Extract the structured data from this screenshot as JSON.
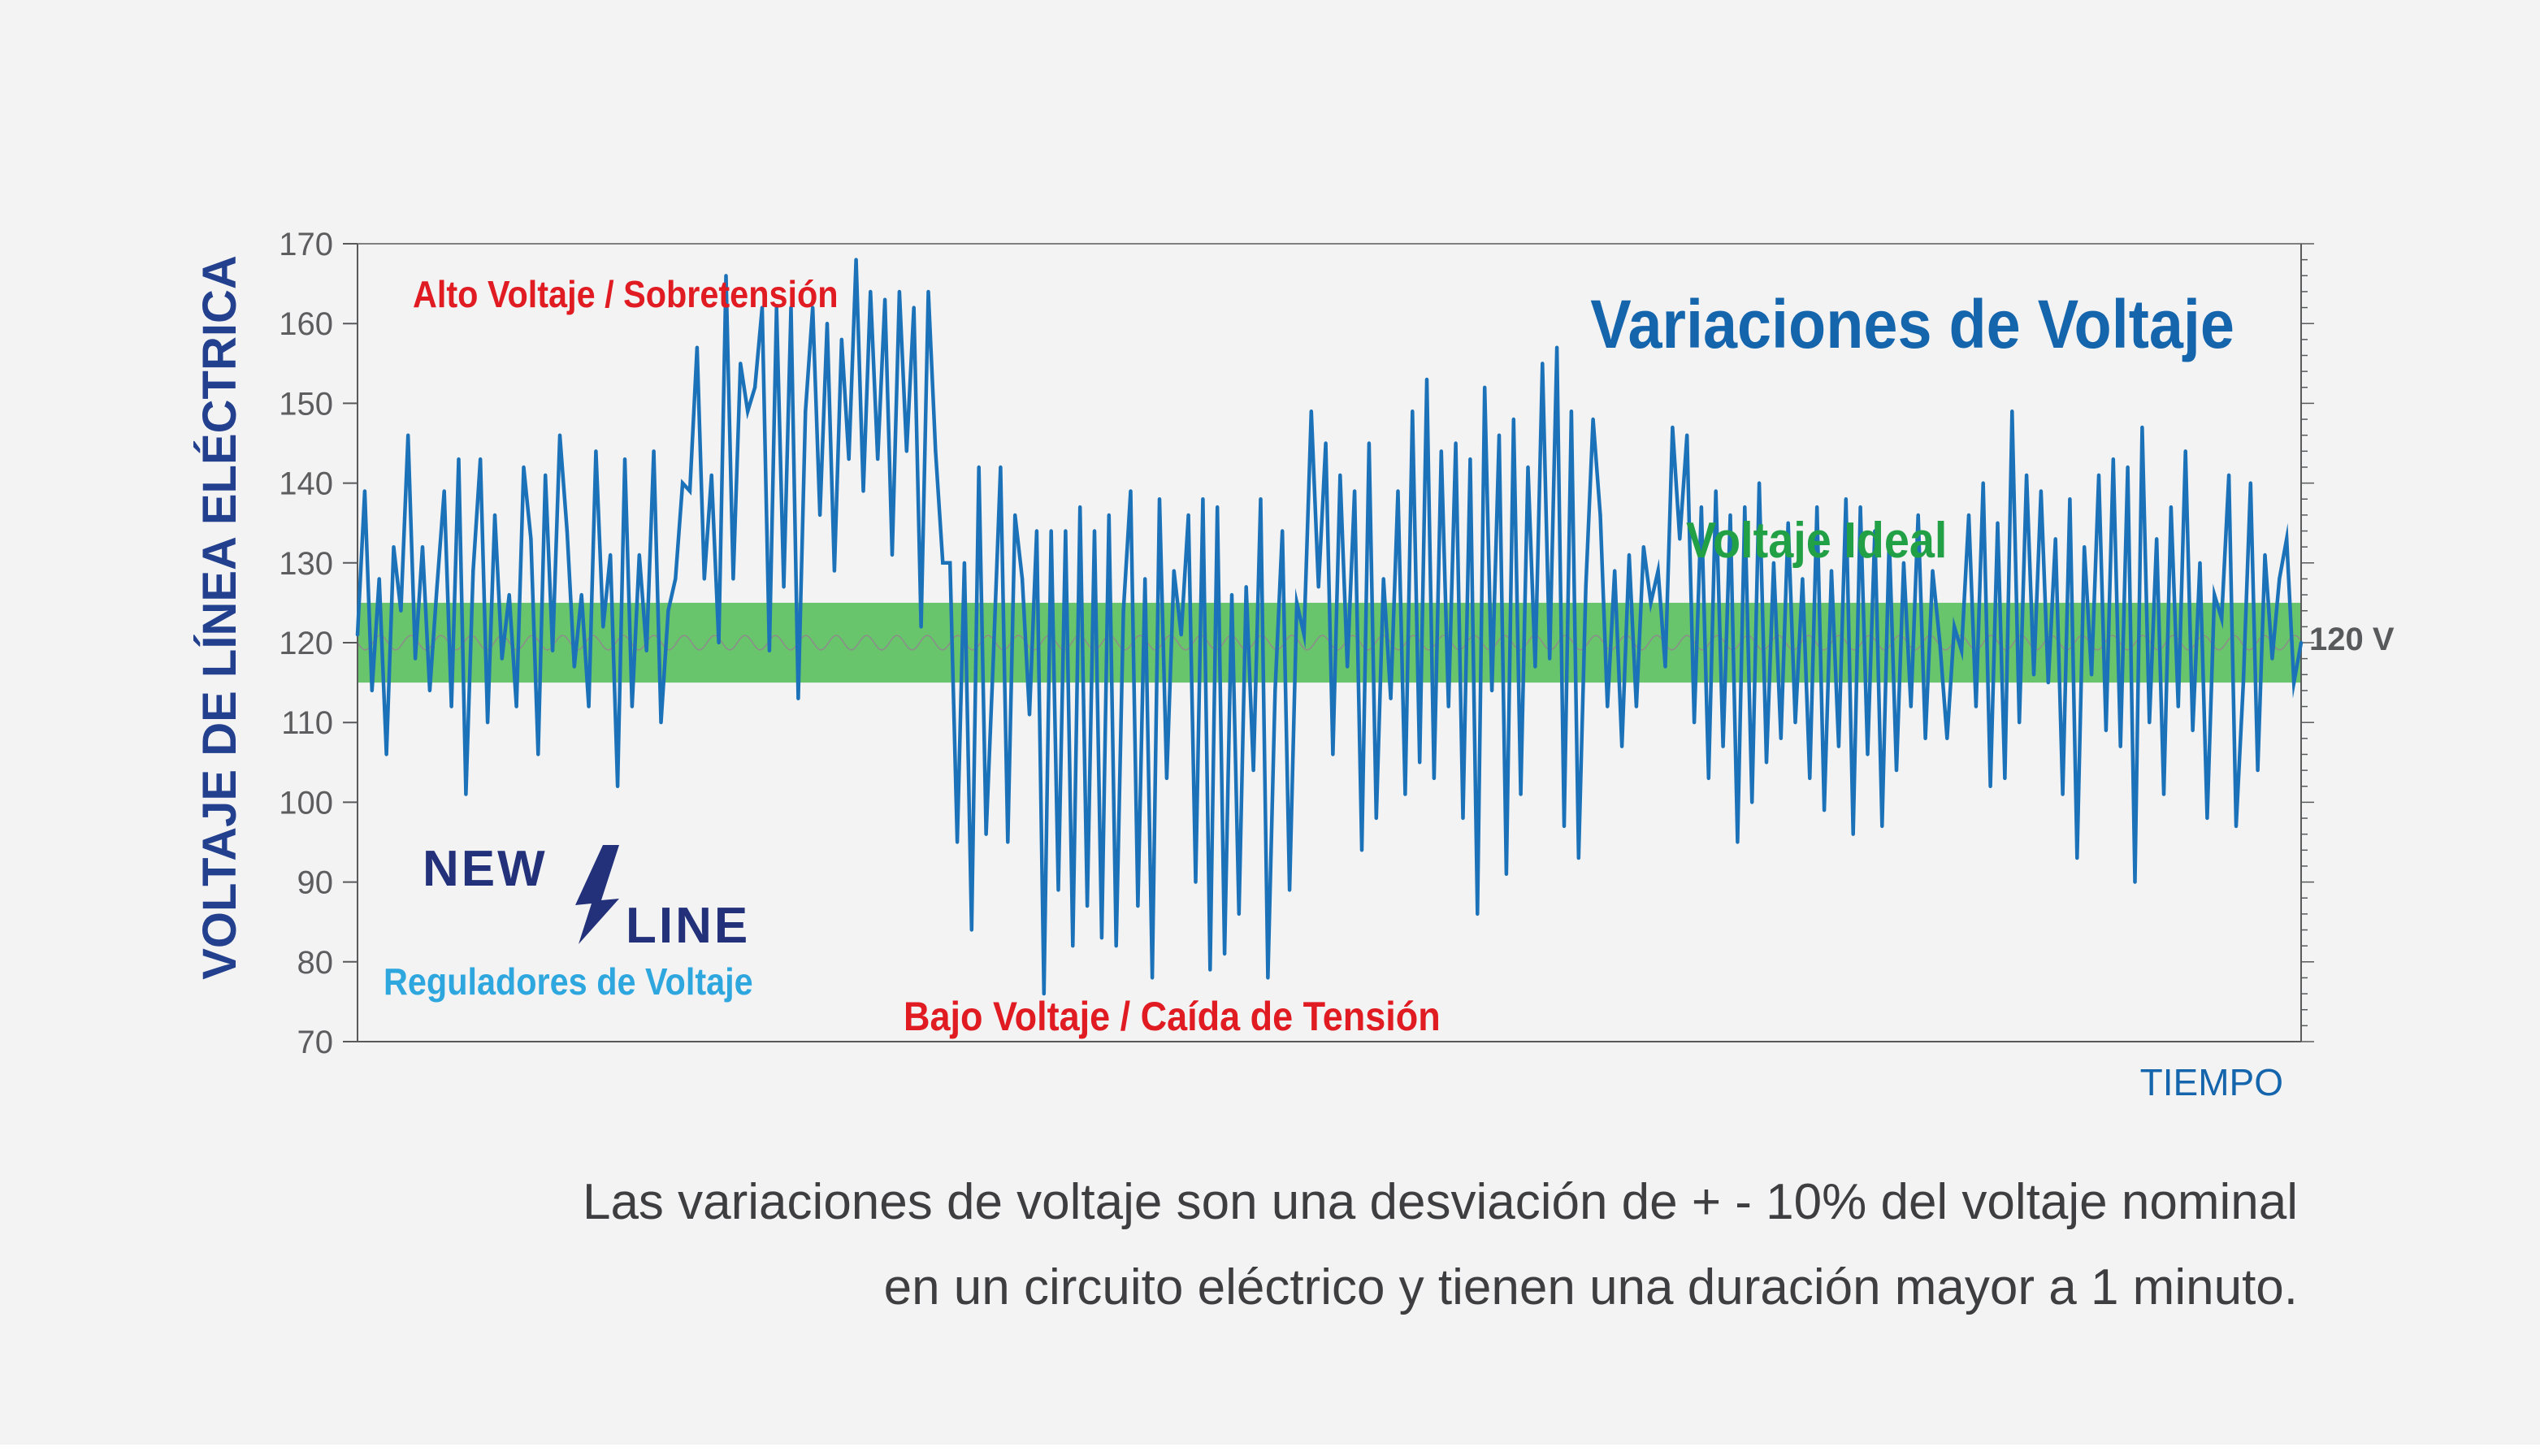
{
  "colors": {
    "background": "#f3f3f4",
    "signal": "#1c72b8",
    "ideal_band": "#5dc15f",
    "high_label": "#e01b22",
    "low_label": "#e01b22",
    "title": "#1565ad",
    "ideal_label": "#21a046",
    "axis_label": "#23408e",
    "brand_dark": "#23317a",
    "brand_light": "#2ea7df",
    "tick_text": "#5d5d5f"
  },
  "chart_data": {
    "type": "line",
    "title": "Variaciones de Voltaje",
    "xlabel": "TIEMPO",
    "ylabel": "VOLTAJE DE LÍNEA ELÉCTRICA",
    "ylim": [
      70,
      170
    ],
    "yticks": [
      "70",
      "80",
      "90",
      "100",
      "110",
      "120",
      "130",
      "140",
      "150",
      "160",
      "170"
    ],
    "ideal_band": {
      "label": "Voltaje Ideal",
      "from": 115,
      "to": 125,
      "nominal": 120,
      "nominal_label": "120 V"
    },
    "annotations": {
      "high": "Alto Voltaje / Sobretensión",
      "low": "Bajo Voltaje / Caída de Tensión"
    },
    "series": [
      {
        "values": [
          121,
          139,
          114,
          128,
          106,
          132,
          124,
          146,
          118,
          132,
          114,
          127,
          139,
          112,
          143,
          101,
          129,
          143,
          110,
          136,
          118,
          126,
          112,
          142,
          133,
          106,
          141,
          119,
          146,
          134,
          117,
          126,
          112,
          144,
          122,
          131,
          102,
          143,
          112,
          131,
          119,
          144,
          110,
          124,
          128,
          140,
          139,
          157,
          128,
          141,
          120,
          166,
          128,
          155,
          149,
          152,
          162,
          119,
          162,
          127,
          162,
          113,
          149,
          162,
          136,
          160,
          129,
          158,
          143,
          168,
          139,
          164,
          143,
          163,
          131,
          164,
          144,
          162,
          122,
          164,
          144,
          130,
          130,
          95,
          130,
          84,
          142,
          96,
          118,
          142,
          95,
          136,
          128,
          111,
          134,
          76,
          134,
          89,
          134,
          82,
          137,
          87,
          134,
          83,
          136,
          82,
          124,
          139,
          87,
          128,
          78,
          138,
          103,
          129,
          121,
          136,
          90,
          138,
          79,
          137,
          81,
          126,
          86,
          127,
          104,
          138,
          78,
          114,
          134,
          89,
          125,
          121,
          149,
          127,
          145,
          106,
          141,
          117,
          139,
          94,
          145,
          98,
          128,
          113,
          139,
          101,
          149,
          105,
          153,
          103,
          144,
          112,
          145,
          98,
          143,
          86,
          152,
          114,
          146,
          91,
          148,
          101,
          142,
          117,
          155,
          118,
          157,
          97,
          149,
          93,
          127,
          148,
          136,
          112,
          129,
          107,
          131,
          112,
          132,
          125,
          129,
          117,
          147,
          133,
          146,
          110,
          137,
          103,
          139,
          107,
          136,
          95,
          137,
          100,
          140,
          105,
          130,
          108,
          135,
          110,
          128,
          103,
          137,
          99,
          129,
          107,
          138,
          96,
          137,
          106,
          134,
          97,
          133,
          104,
          130,
          112,
          136,
          108,
          129,
          120,
          108,
          122,
          119,
          136,
          112,
          140,
          102,
          135,
          103,
          149,
          110,
          141,
          116,
          139,
          115,
          133,
          101,
          138,
          93,
          132,
          116,
          141,
          109,
          143,
          107,
          142,
          90,
          147,
          110,
          133,
          101,
          137,
          112,
          144,
          109,
          130,
          98,
          126,
          123,
          141,
          97,
          115,
          140,
          104,
          131,
          118,
          128,
          133,
          115,
          120
        ]
      }
    ]
  },
  "brand": {
    "name_top": "NEW",
    "name_bottom": "LINE",
    "tagline": "Reguladores de Voltaje"
  },
  "caption": {
    "line1": "Las variaciones de voltaje son una desviación de + - 10% del voltaje nominal",
    "line2": "en un circuito eléctrico y tienen una duración mayor a 1 minuto."
  }
}
